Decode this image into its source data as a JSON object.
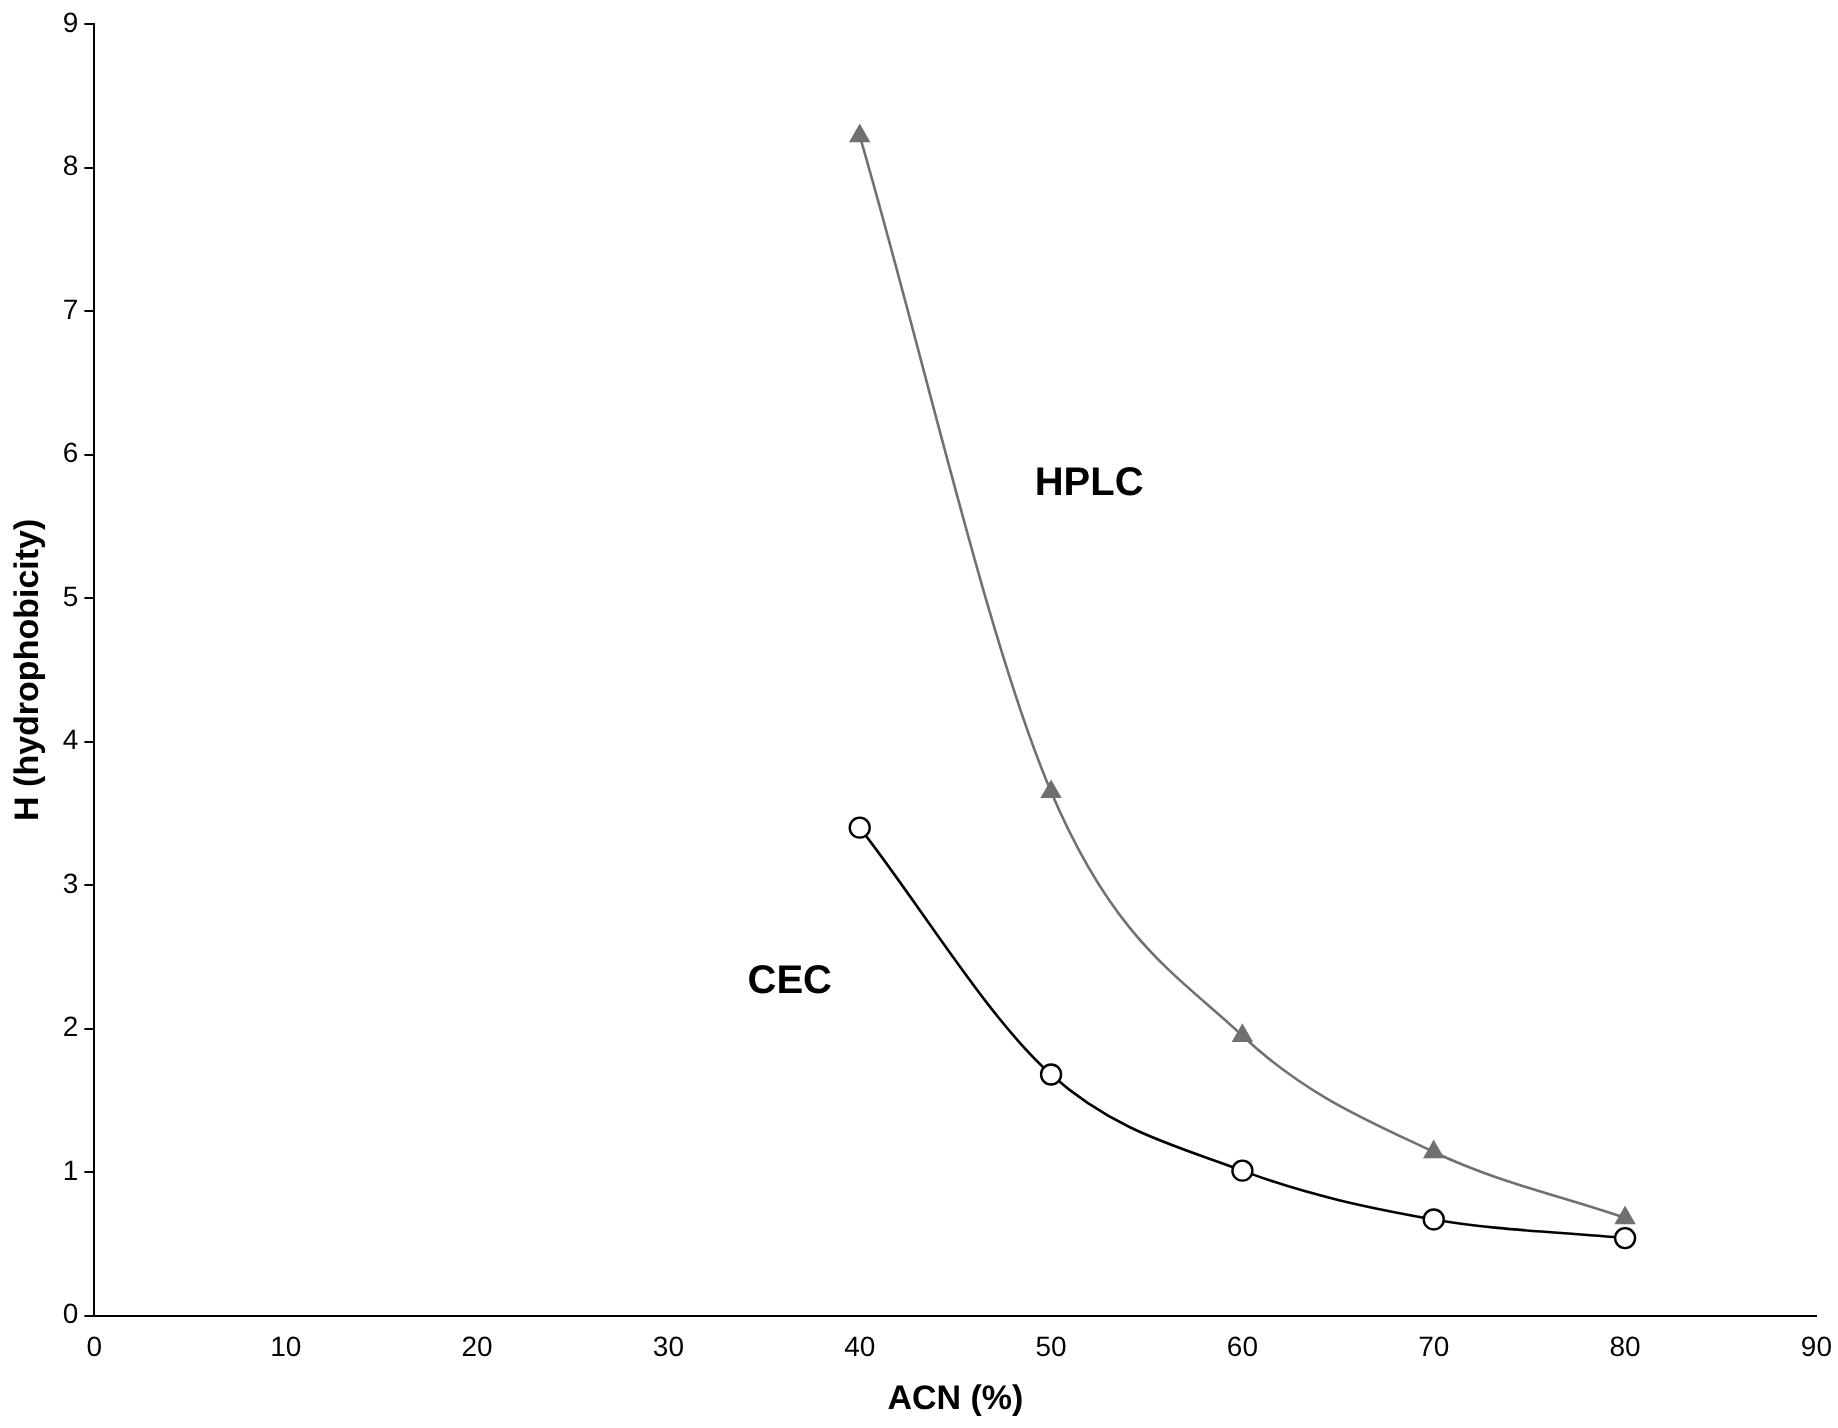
{
  "chart_data": {
    "type": "line",
    "xlabel": "ACN (%)",
    "ylabel": "H (hydrophobicity)",
    "xlim": [
      0,
      90
    ],
    "xticks": [
      0,
      10,
      20,
      30,
      40,
      50,
      60,
      70,
      80,
      90
    ],
    "ylim": [
      0,
      9
    ],
    "yticks": [
      0,
      1,
      2,
      3,
      4,
      5,
      6,
      7,
      8,
      9
    ],
    "grid": false,
    "legend": false,
    "series": [
      {
        "name": "HPLC",
        "color": "#707070",
        "marker": "triangle",
        "x": [
          40,
          50,
          60,
          70,
          80
        ],
        "values": [
          8.22,
          3.65,
          1.95,
          1.14,
          0.68
        ]
      },
      {
        "name": "CEC",
        "color": "#000000",
        "marker": "circle",
        "x": [
          40,
          50,
          60,
          70,
          80
        ],
        "values": [
          3.4,
          1.68,
          1.01,
          0.67,
          0.54
        ]
      }
    ]
  }
}
